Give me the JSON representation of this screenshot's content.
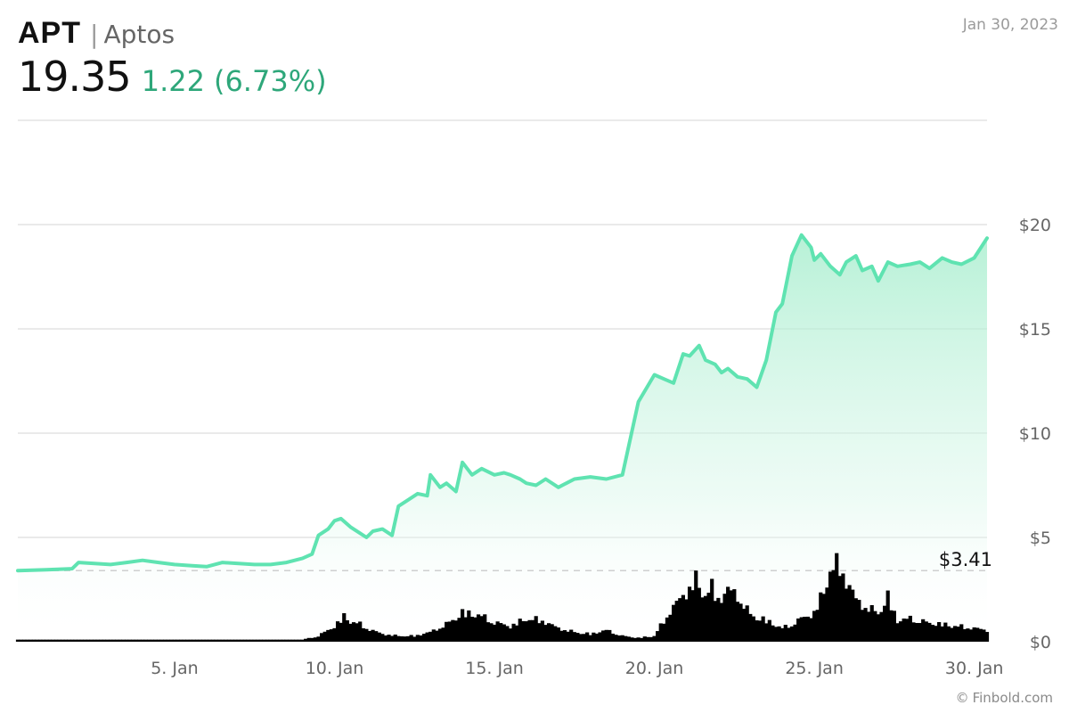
{
  "header": {
    "ticker": "APT",
    "separator": "|",
    "name": "Aptos",
    "price": "19.35",
    "change": "1.22",
    "change_pct": "(6.73%)",
    "date": "Jan 30, 2023"
  },
  "footer": {
    "copyright_symbol": "©",
    "credit": "Finbold.com"
  },
  "colors": {
    "line": "#5fe3b1",
    "area_top": "#bdf2dc",
    "volume": "#000000",
    "grid": "#e3e3e3",
    "ref_line": "#cfcfcf",
    "change": "#2ea77a"
  },
  "chart_data": {
    "type": "line",
    "x_tick_labels": [
      "5. Jan",
      "10. Jan",
      "15. Jan",
      "20. Jan",
      "25. Jan",
      "30. Jan"
    ],
    "x_ticks_day": [
      5,
      10,
      15,
      20,
      25,
      30
    ],
    "x_range_day": [
      0.1,
      30.4
    ],
    "y_tick_labels": [
      "$0",
      "$5",
      "$10",
      "$15",
      "$20"
    ],
    "y_ticks": [
      0,
      5,
      10,
      15,
      20
    ],
    "ylim": [
      0,
      25
    ],
    "reference_line": {
      "value": 3.41,
      "label": "$3.41"
    },
    "price_series": {
      "x_day": [
        0.1,
        1.0,
        1.8,
        2.0,
        2.5,
        3.0,
        3.5,
        4.0,
        4.5,
        5.0,
        5.5,
        6.0,
        6.5,
        7.0,
        7.5,
        8.0,
        8.5,
        9.0,
        9.3,
        9.5,
        9.8,
        10.0,
        10.2,
        10.5,
        10.8,
        11.0,
        11.2,
        11.5,
        11.8,
        12.0,
        12.3,
        12.6,
        12.9,
        13.0,
        13.3,
        13.5,
        13.8,
        14.0,
        14.3,
        14.6,
        15.0,
        15.3,
        15.5,
        15.8,
        16.0,
        16.3,
        16.6,
        17.0,
        17.5,
        18.0,
        18.5,
        19.0,
        19.5,
        20.0,
        20.3,
        20.6,
        20.9,
        21.1,
        21.4,
        21.6,
        21.9,
        22.1,
        22.3,
        22.6,
        22.9,
        23.2,
        23.5,
        23.8,
        24.0,
        24.3,
        24.6,
        24.9,
        25.0,
        25.2,
        25.5,
        25.8,
        26.0,
        26.3,
        26.5,
        26.8,
        27.0,
        27.3,
        27.6,
        28.0,
        28.3,
        28.6,
        29.0,
        29.3,
        29.6,
        30.0,
        30.4
      ],
      "y": [
        3.41,
        3.45,
        3.5,
        3.8,
        3.75,
        3.7,
        3.8,
        3.9,
        3.8,
        3.7,
        3.65,
        3.6,
        3.8,
        3.75,
        3.7,
        3.7,
        3.8,
        4.0,
        4.2,
        5.1,
        5.4,
        5.8,
        5.9,
        5.5,
        5.2,
        5.0,
        5.3,
        5.4,
        5.1,
        6.5,
        6.8,
        7.1,
        7.0,
        8.0,
        7.4,
        7.6,
        7.2,
        8.6,
        8.0,
        8.3,
        8.0,
        8.1,
        8.0,
        7.8,
        7.6,
        7.5,
        7.8,
        7.4,
        7.8,
        7.9,
        7.8,
        8.0,
        11.5,
        12.8,
        12.6,
        12.4,
        13.8,
        13.7,
        14.2,
        13.5,
        13.3,
        12.9,
        13.1,
        12.7,
        12.6,
        12.2,
        13.5,
        15.8,
        16.2,
        18.5,
        19.5,
        18.9,
        18.3,
        18.6,
        18.0,
        17.6,
        18.2,
        18.5,
        17.8,
        18.0,
        17.3,
        18.2,
        18.0,
        18.1,
        18.2,
        17.9,
        18.4,
        18.2,
        18.1,
        18.4,
        19.35
      ]
    },
    "volume_series": {
      "x_day": [
        0.1,
        9.0,
        9.5,
        10.0,
        10.3,
        10.5,
        10.8,
        11.0,
        11.5,
        12.0,
        12.5,
        13.0,
        13.5,
        14.0,
        14.5,
        15.0,
        15.5,
        16.0,
        16.5,
        17.0,
        17.5,
        18.0,
        18.5,
        19.0,
        19.5,
        20.0,
        20.5,
        21.0,
        21.3,
        21.5,
        21.8,
        22.0,
        22.3,
        22.6,
        23.0,
        23.5,
        24.0,
        24.3,
        24.6,
        25.0,
        25.3,
        25.5,
        25.8,
        26.0,
        26.3,
        26.6,
        27.0,
        27.3,
        27.6,
        28.0,
        28.5,
        29.0,
        29.5,
        30.0,
        30.4
      ],
      "y": [
        0.1,
        0.1,
        0.3,
        0.8,
        1.3,
        1.1,
        0.9,
        0.7,
        0.4,
        0.3,
        0.3,
        0.5,
        0.9,
        1.5,
        1.4,
        1.0,
        0.8,
        1.2,
        1.1,
        0.7,
        0.5,
        0.4,
        0.6,
        0.3,
        0.2,
        0.3,
        1.6,
        2.6,
        3.2,
        2.5,
        2.8,
        2.2,
        2.7,
        2.4,
        1.4,
        1.1,
        0.7,
        0.9,
        1.2,
        1.5,
        2.6,
        3.8,
        4.0,
        3.2,
        2.2,
        1.8,
        1.5,
        2.3,
        1.1,
        1.2,
        1.0,
        0.9,
        0.8,
        0.7,
        0.6
      ]
    }
  }
}
